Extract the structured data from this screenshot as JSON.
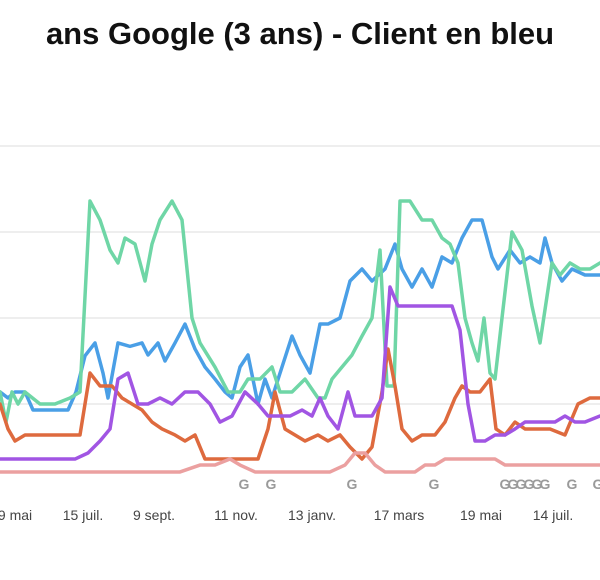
{
  "chart_data": {
    "type": "line",
    "title": "ans Google (3 ans) - Client en bleu",
    "xlabel": "",
    "ylabel": "",
    "ylim": [
      0,
      400
    ],
    "grid": true,
    "xlim": [
      0,
      600
    ],
    "x_ticks": [
      {
        "label": "9 mai",
        "x": 15
      },
      {
        "label": "15 juil.",
        "x": 83
      },
      {
        "label": "9 sept.",
        "x": 154
      },
      {
        "label": "11 nov.",
        "x": 236
      },
      {
        "label": "13 janv.",
        "x": 312
      },
      {
        "label": "17 mars",
        "x": 399
      },
      {
        "label": "19 mai",
        "x": 481
      },
      {
        "label": "14 juil.",
        "x": 553
      }
    ],
    "annotation_marker": "G",
    "annotation_x": [
      244,
      271,
      352,
      434,
      505,
      513,
      521,
      529,
      537,
      545,
      572,
      598
    ],
    "series": [
      {
        "name": "",
        "color": "#4a9fe6",
        "points": [
          [
            0,
            114
          ],
          [
            8,
            107
          ],
          [
            15,
            114
          ],
          [
            25,
            114
          ],
          [
            33,
            93
          ],
          [
            43,
            93
          ],
          [
            55,
            93
          ],
          [
            68,
            93
          ],
          [
            76,
            114
          ],
          [
            85,
            156
          ],
          [
            95,
            171
          ],
          [
            103,
            136
          ],
          [
            108,
            107
          ],
          [
            118,
            171
          ],
          [
            130,
            167
          ],
          [
            142,
            171
          ],
          [
            148,
            157
          ],
          [
            158,
            171
          ],
          [
            165,
            150
          ],
          [
            175,
            171
          ],
          [
            185,
            193
          ],
          [
            195,
            164
          ],
          [
            205,
            143
          ],
          [
            215,
            129
          ],
          [
            225,
            114
          ],
          [
            232,
            107
          ],
          [
            240,
            143
          ],
          [
            248,
            157
          ],
          [
            258,
            100
          ],
          [
            265,
            129
          ],
          [
            272,
            107
          ],
          [
            282,
            143
          ],
          [
            292,
            179
          ],
          [
            300,
            157
          ],
          [
            310,
            136
          ],
          [
            320,
            193
          ],
          [
            328,
            193
          ],
          [
            340,
            200
          ],
          [
            350,
            243
          ],
          [
            362,
            257
          ],
          [
            372,
            243
          ],
          [
            385,
            257
          ],
          [
            395,
            286
          ],
          [
            402,
            257
          ],
          [
            412,
            236
          ],
          [
            422,
            257
          ],
          [
            432,
            236
          ],
          [
            442,
            271
          ],
          [
            452,
            264
          ],
          [
            462,
            293
          ],
          [
            472,
            314
          ],
          [
            482,
            314
          ],
          [
            492,
            271
          ],
          [
            498,
            257
          ],
          [
            510,
            279
          ],
          [
            520,
            264
          ],
          [
            530,
            271
          ],
          [
            540,
            264
          ],
          [
            545,
            293
          ],
          [
            552,
            264
          ],
          [
            562,
            243
          ],
          [
            572,
            257
          ],
          [
            585,
            250
          ],
          [
            600,
            250
          ]
        ]
      },
      {
        "name": "",
        "color": "#6fd6a6",
        "points": [
          [
            0,
            114
          ],
          [
            6,
            79
          ],
          [
            12,
            114
          ],
          [
            18,
            100
          ],
          [
            25,
            114
          ],
          [
            40,
            100
          ],
          [
            55,
            100
          ],
          [
            70,
            107
          ],
          [
            80,
            114
          ],
          [
            90,
            336
          ],
          [
            100,
            314
          ],
          [
            110,
            279
          ],
          [
            118,
            264
          ],
          [
            125,
            293
          ],
          [
            135,
            286
          ],
          [
            145,
            243
          ],
          [
            152,
            286
          ],
          [
            160,
            314
          ],
          [
            172,
            336
          ],
          [
            182,
            314
          ],
          [
            192,
            200
          ],
          [
            200,
            171
          ],
          [
            215,
            143
          ],
          [
            228,
            114
          ],
          [
            240,
            114
          ],
          [
            248,
            129
          ],
          [
            260,
            129
          ],
          [
            272,
            143
          ],
          [
            280,
            114
          ],
          [
            292,
            114
          ],
          [
            305,
            129
          ],
          [
            318,
            107
          ],
          [
            325,
            107
          ],
          [
            332,
            129
          ],
          [
            342,
            143
          ],
          [
            352,
            157
          ],
          [
            362,
            179
          ],
          [
            372,
            200
          ],
          [
            380,
            279
          ],
          [
            387,
            121
          ],
          [
            394,
            121
          ],
          [
            400,
            336
          ],
          [
            410,
            336
          ],
          [
            422,
            314
          ],
          [
            432,
            314
          ],
          [
            442,
            293
          ],
          [
            450,
            286
          ],
          [
            458,
            264
          ],
          [
            465,
            200
          ],
          [
            472,
            171
          ],
          [
            478,
            150
          ],
          [
            484,
            200
          ],
          [
            490,
            136
          ],
          [
            495,
            129
          ],
          [
            502,
            200
          ],
          [
            512,
            300
          ],
          [
            522,
            279
          ],
          [
            532,
            214
          ],
          [
            540,
            171
          ],
          [
            552,
            264
          ],
          [
            560,
            250
          ],
          [
            570,
            264
          ],
          [
            580,
            257
          ],
          [
            590,
            257
          ],
          [
            600,
            264
          ]
        ]
      },
      {
        "name": "",
        "color": "#de6a3e",
        "points": [
          [
            0,
            100
          ],
          [
            8,
            71
          ],
          [
            15,
            57
          ],
          [
            25,
            64
          ],
          [
            40,
            64
          ],
          [
            55,
            64
          ],
          [
            70,
            64
          ],
          [
            80,
            64
          ],
          [
            90,
            136
          ],
          [
            100,
            121
          ],
          [
            112,
            121
          ],
          [
            122,
            107
          ],
          [
            132,
            100
          ],
          [
            142,
            93
          ],
          [
            152,
            79
          ],
          [
            162,
            71
          ],
          [
            175,
            64
          ],
          [
            185,
            57
          ],
          [
            195,
            64
          ],
          [
            205,
            36
          ],
          [
            218,
            36
          ],
          [
            230,
            36
          ],
          [
            245,
            36
          ],
          [
            258,
            36
          ],
          [
            268,
            71
          ],
          [
            275,
            114
          ],
          [
            285,
            71
          ],
          [
            295,
            64
          ],
          [
            305,
            57
          ],
          [
            318,
            64
          ],
          [
            328,
            57
          ],
          [
            340,
            64
          ],
          [
            350,
            50
          ],
          [
            362,
            36
          ],
          [
            372,
            50
          ],
          [
            382,
            114
          ],
          [
            388,
            164
          ],
          [
            395,
            121
          ],
          [
            402,
            71
          ],
          [
            412,
            57
          ],
          [
            422,
            64
          ],
          [
            435,
            64
          ],
          [
            445,
            79
          ],
          [
            455,
            107
          ],
          [
            462,
            121
          ],
          [
            470,
            114
          ],
          [
            480,
            114
          ],
          [
            490,
            129
          ],
          [
            496,
            71
          ],
          [
            505,
            64
          ],
          [
            515,
            79
          ],
          [
            525,
            71
          ],
          [
            538,
            71
          ],
          [
            550,
            71
          ],
          [
            565,
            64
          ],
          [
            578,
            100
          ],
          [
            590,
            107
          ],
          [
            600,
            107
          ]
        ]
      },
      {
        "name": "",
        "color": "#a155e3",
        "points": [
          [
            0,
            36
          ],
          [
            15,
            36
          ],
          [
            30,
            36
          ],
          [
            45,
            36
          ],
          [
            60,
            36
          ],
          [
            75,
            36
          ],
          [
            88,
            43
          ],
          [
            100,
            57
          ],
          [
            110,
            71
          ],
          [
            118,
            129
          ],
          [
            128,
            136
          ],
          [
            138,
            100
          ],
          [
            148,
            100
          ],
          [
            160,
            107
          ],
          [
            172,
            100
          ],
          [
            185,
            114
          ],
          [
            198,
            114
          ],
          [
            210,
            100
          ],
          [
            220,
            79
          ],
          [
            232,
            86
          ],
          [
            245,
            114
          ],
          [
            258,
            100
          ],
          [
            268,
            86
          ],
          [
            278,
            86
          ],
          [
            290,
            86
          ],
          [
            302,
            93
          ],
          [
            312,
            86
          ],
          [
            320,
            107
          ],
          [
            328,
            86
          ],
          [
            338,
            71
          ],
          [
            348,
            114
          ],
          [
            355,
            86
          ],
          [
            362,
            86
          ],
          [
            372,
            86
          ],
          [
            382,
            107
          ],
          [
            390,
            236
          ],
          [
            398,
            214
          ],
          [
            410,
            214
          ],
          [
            422,
            214
          ],
          [
            432,
            214
          ],
          [
            442,
            214
          ],
          [
            452,
            214
          ],
          [
            460,
            186
          ],
          [
            468,
            100
          ],
          [
            475,
            57
          ],
          [
            485,
            57
          ],
          [
            495,
            64
          ],
          [
            505,
            64
          ],
          [
            515,
            71
          ],
          [
            525,
            79
          ],
          [
            540,
            79
          ],
          [
            555,
            79
          ],
          [
            565,
            86
          ],
          [
            575,
            79
          ],
          [
            585,
            79
          ],
          [
            600,
            86
          ]
        ]
      },
      {
        "name": "",
        "color": "#eba0a0",
        "points": [
          [
            0,
            21
          ],
          [
            20,
            21
          ],
          [
            40,
            21
          ],
          [
            60,
            21
          ],
          [
            80,
            21
          ],
          [
            100,
            21
          ],
          [
            120,
            21
          ],
          [
            140,
            21
          ],
          [
            160,
            21
          ],
          [
            180,
            21
          ],
          [
            200,
            29
          ],
          [
            215,
            29
          ],
          [
            230,
            36
          ],
          [
            240,
            29
          ],
          [
            255,
            21
          ],
          [
            270,
            21
          ],
          [
            285,
            21
          ],
          [
            300,
            21
          ],
          [
            315,
            21
          ],
          [
            330,
            21
          ],
          [
            345,
            29
          ],
          [
            355,
            43
          ],
          [
            365,
            43
          ],
          [
            375,
            29
          ],
          [
            385,
            21
          ],
          [
            395,
            21
          ],
          [
            405,
            21
          ],
          [
            415,
            21
          ],
          [
            425,
            29
          ],
          [
            435,
            29
          ],
          [
            445,
            36
          ],
          [
            455,
            36
          ],
          [
            465,
            36
          ],
          [
            475,
            36
          ],
          [
            485,
            36
          ],
          [
            495,
            36
          ],
          [
            505,
            29
          ],
          [
            515,
            29
          ],
          [
            525,
            29
          ],
          [
            540,
            29
          ],
          [
            555,
            29
          ],
          [
            570,
            29
          ],
          [
            585,
            29
          ],
          [
            600,
            29
          ]
        ]
      }
    ]
  }
}
